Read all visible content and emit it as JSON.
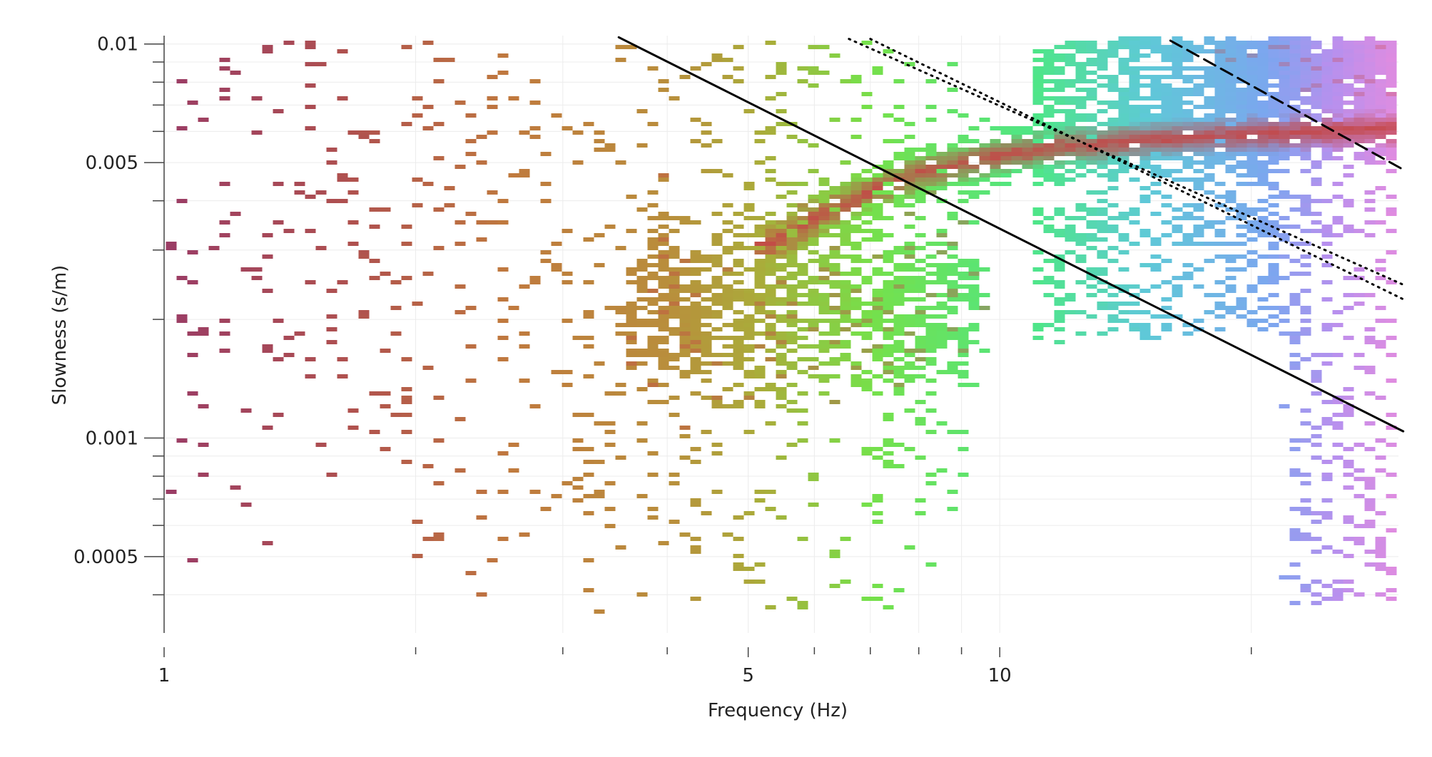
{
  "chart_data": {
    "type": "heatmap",
    "xlabel": "Frequency (Hz)",
    "ylabel": "Slowness (s/m)",
    "x_scale": "log",
    "y_scale": "log",
    "xlim": [
      1,
      30
    ],
    "ylim": [
      0.00032,
      0.0105
    ],
    "grid": true,
    "legend": "none",
    "x_major_ticks": [
      {
        "value": 1,
        "label": "1"
      },
      {
        "value": 5,
        "label": "5"
      },
      {
        "value": 10,
        "label": "10"
      }
    ],
    "x_minor_ticks": [
      2,
      3,
      4,
      6,
      7,
      8,
      9,
      20
    ],
    "y_major_ticks": [
      {
        "value": 0.01,
        "label": "0.01"
      },
      {
        "value": 0.005,
        "label": "0.005"
      },
      {
        "value": 0.001,
        "label": "0.001"
      },
      {
        "value": 0.0005,
        "label": "0.0005"
      }
    ],
    "y_minor_ticks": [
      0.009,
      0.008,
      0.007,
      0.006,
      0.004,
      0.003,
      0.002,
      0.0009,
      0.0008,
      0.0007,
      0.0006,
      0.0004
    ],
    "frequency_colors": [
      {
        "f": 1,
        "color": "#9a3c66"
      },
      {
        "f": 1.7,
        "color": "#b0524e"
      },
      {
        "f": 2.6,
        "color": "#c07a3e"
      },
      {
        "f": 4,
        "color": "#b98e3c"
      },
      {
        "f": 5.2,
        "color": "#a9ad3a"
      },
      {
        "f": 7,
        "color": "#76e04a"
      },
      {
        "f": 11,
        "color": "#4ee687"
      },
      {
        "f": 15,
        "color": "#5ec9d7"
      },
      {
        "f": 21,
        "color": "#7ca6ef"
      },
      {
        "f": 25,
        "color": "#b790ee"
      },
      {
        "f": 30,
        "color": "#e08ce0"
      }
    ],
    "peak_color": "#c44747",
    "dispersion_ridge": [
      {
        "f": 5.3,
        "s": 0.0031
      },
      {
        "f": 6.0,
        "s": 0.0036
      },
      {
        "f": 7.0,
        "s": 0.0042
      },
      {
        "f": 8.0,
        "s": 0.0047
      },
      {
        "f": 10.0,
        "s": 0.0052
      },
      {
        "f": 12.0,
        "s": 0.0055
      },
      {
        "f": 15.0,
        "s": 0.0057
      },
      {
        "f": 20.0,
        "s": 0.0059
      },
      {
        "f": 30.0,
        "s": 0.0061
      }
    ],
    "upper_band": [
      {
        "f": 20,
        "s": 0.0093
      },
      {
        "f": 25,
        "s": 0.0087
      },
      {
        "f": 30,
        "s": 0.0084
      }
    ],
    "reference_lines": [
      {
        "style": "solid",
        "points": [
          {
            "f": 3.5,
            "s": 0.0104
          },
          {
            "f": 30.4,
            "s": 0.00104
          }
        ]
      },
      {
        "style": "dotted",
        "points": [
          {
            "f": 6.6,
            "s": 0.0103
          },
          {
            "f": 30.4,
            "s": 0.00245
          }
        ]
      },
      {
        "style": "dotted",
        "points": [
          {
            "f": 7.0,
            "s": 0.0103
          },
          {
            "f": 30.4,
            "s": 0.00225
          }
        ]
      },
      {
        "style": "dashed",
        "points": [
          {
            "f": 16.0,
            "s": 0.0102
          },
          {
            "f": 30.4,
            "s": 0.0048
          }
        ]
      }
    ]
  }
}
